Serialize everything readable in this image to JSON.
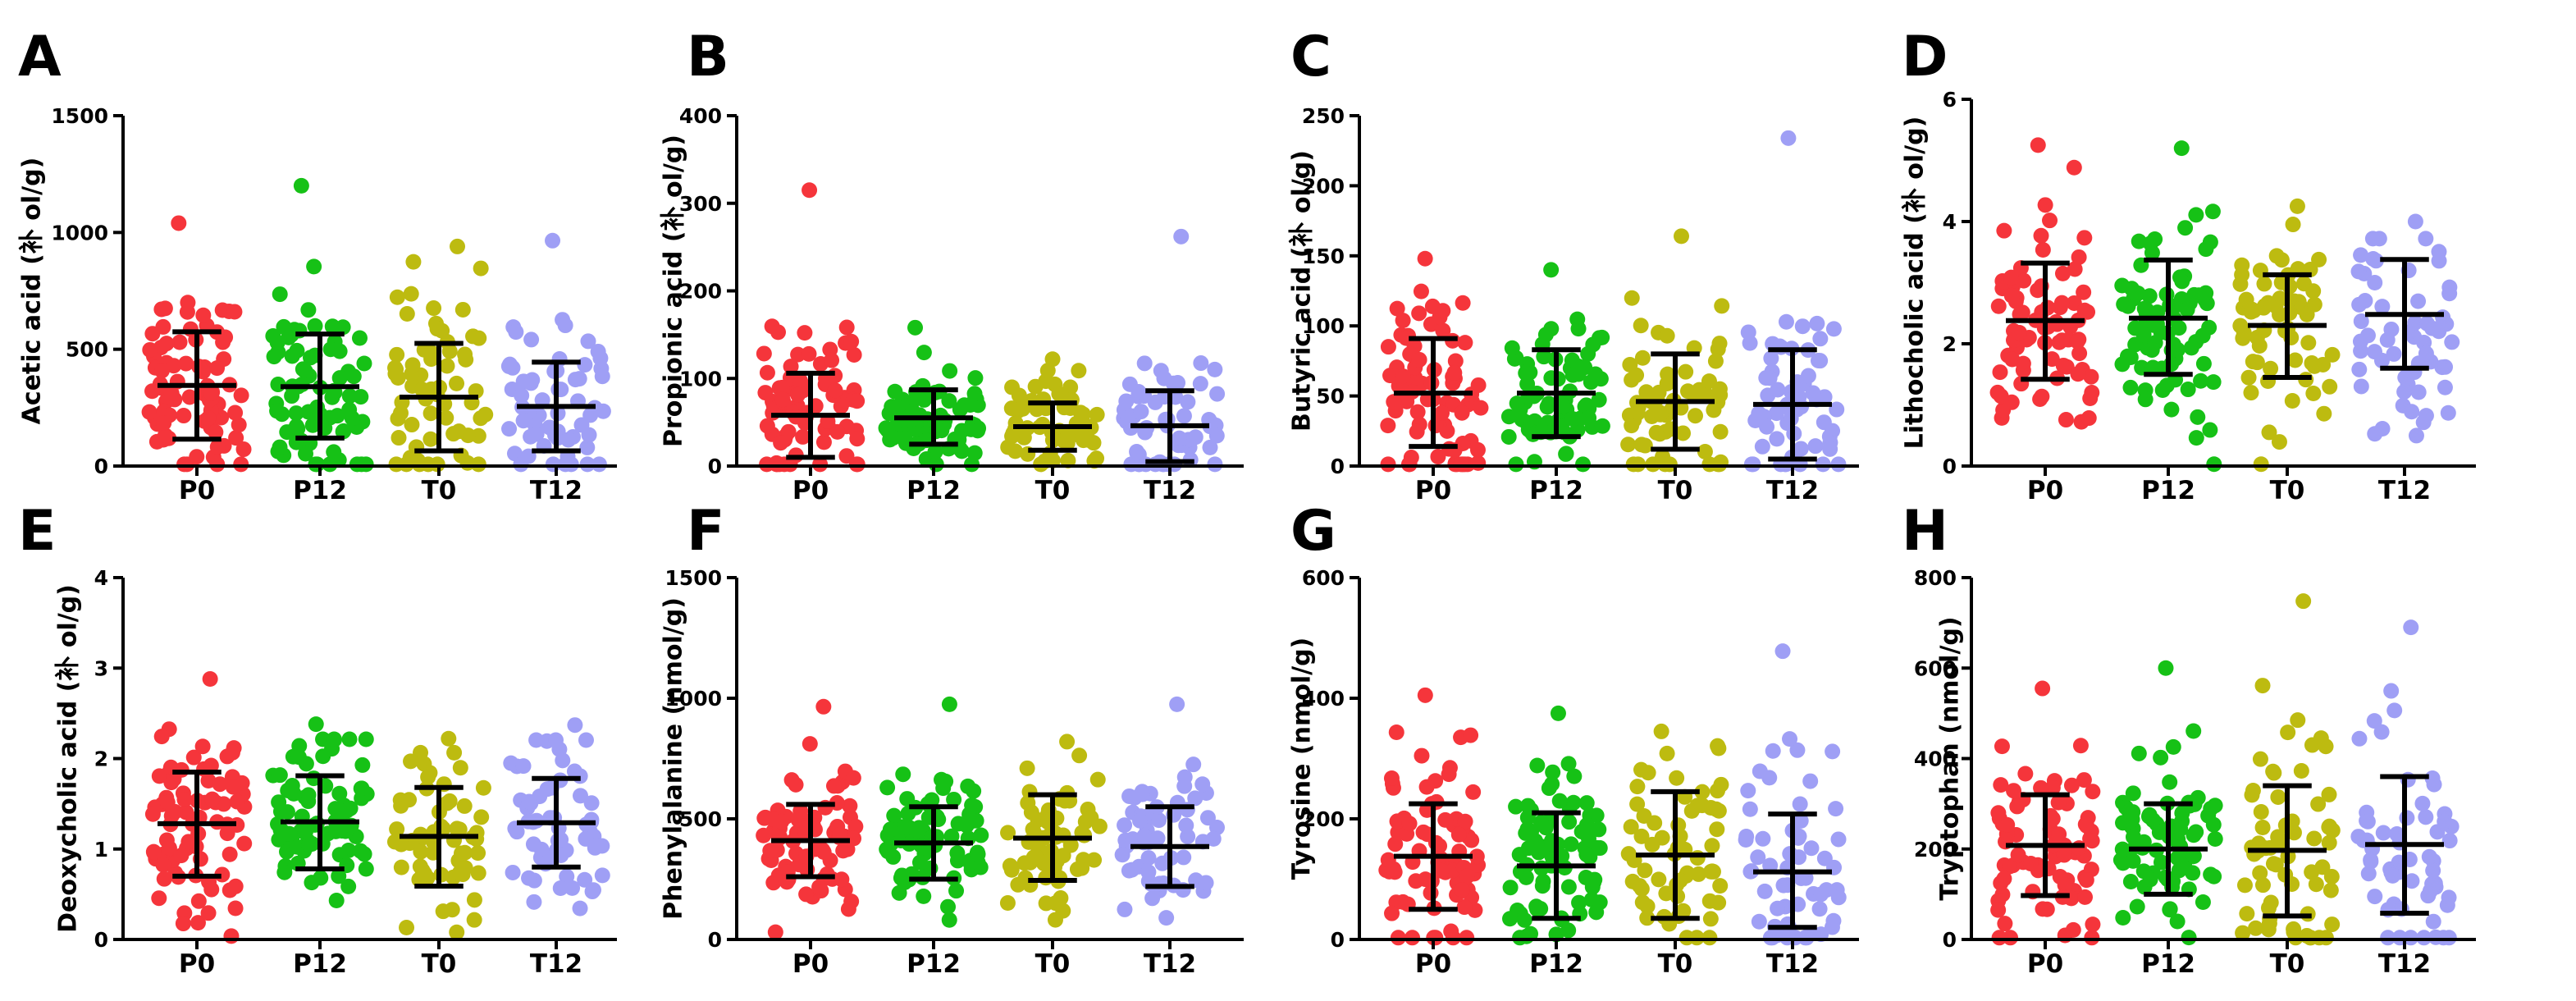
{
  "colors": {
    "P0": "#f5353b",
    "P12": "#16c116",
    "T0": "#bdbb10",
    "T12": "#9f9ff5"
  },
  "chart_data": [
    {
      "panel": "A",
      "type": "scatter",
      "ylabel": "Acetic acid (补 ol/g)",
      "ylim": [
        0,
        1500
      ],
      "yticks": [
        "0",
        "500",
        "1000",
        "1500"
      ],
      "categories": [
        "P0",
        "P12",
        "T0",
        "T12"
      ],
      "series": [
        {
          "name": "P0",
          "mean": 345,
          "lower": 115,
          "upper": 575,
          "n": 80,
          "max": 1040
        },
        {
          "name": "P12",
          "mean": 340,
          "lower": 120,
          "upper": 565,
          "n": 80,
          "max": 1200
        },
        {
          "name": "T0",
          "mean": 295,
          "lower": 65,
          "upper": 525,
          "n": 65,
          "max": 940
        },
        {
          "name": "T12",
          "mean": 255,
          "lower": 65,
          "upper": 445,
          "n": 60,
          "max": 965
        }
      ]
    },
    {
      "panel": "B",
      "type": "scatter",
      "ylabel": "Propionic acid (补 ol/g)",
      "ylim": [
        0,
        400
      ],
      "yticks": [
        "0",
        "100",
        "200",
        "300",
        "400"
      ],
      "categories": [
        "P0",
        "P12",
        "T0",
        "T12"
      ],
      "series": [
        {
          "name": "P0",
          "mean": 58,
          "lower": 10,
          "upper": 106,
          "n": 80,
          "max": 315
        },
        {
          "name": "P12",
          "mean": 55,
          "lower": 25,
          "upper": 87,
          "n": 80,
          "max": 158
        },
        {
          "name": "T0",
          "mean": 45,
          "lower": 18,
          "upper": 72,
          "n": 65,
          "max": 122
        },
        {
          "name": "T12",
          "mean": 46,
          "lower": 5,
          "upper": 86,
          "n": 60,
          "max": 262
        }
      ]
    },
    {
      "panel": "C",
      "type": "scatter",
      "ylabel": "Butyric acid (补 ol/g)",
      "ylim": [
        0,
        250
      ],
      "yticks": [
        "0",
        "50",
        "100",
        "150",
        "200",
        "250"
      ],
      "categories": [
        "P0",
        "P12",
        "T0",
        "T12"
      ],
      "series": [
        {
          "name": "P0",
          "mean": 52,
          "lower": 14,
          "upper": 91,
          "n": 80,
          "max": 148
        },
        {
          "name": "P12",
          "mean": 52,
          "lower": 21,
          "upper": 83,
          "n": 80,
          "max": 140
        },
        {
          "name": "T0",
          "mean": 46,
          "lower": 12,
          "upper": 80,
          "n": 65,
          "max": 164
        },
        {
          "name": "T12",
          "mean": 44,
          "lower": 5,
          "upper": 83,
          "n": 60,
          "max": 234
        }
      ]
    },
    {
      "panel": "D",
      "type": "scatter",
      "ylabel": "Lithocholic acid (补 ol/g)",
      "ylim": [
        0,
        6
      ],
      "yticks": [
        "0",
        "2",
        "4",
        "6"
      ],
      "categories": [
        "P0",
        "P12",
        "T0",
        "T12"
      ],
      "series": [
        {
          "name": "P0",
          "mean": 2.38,
          "lower": 1.42,
          "upper": 3.32,
          "n": 80,
          "max": 5.25
        },
        {
          "name": "P12",
          "mean": 2.42,
          "lower": 1.5,
          "upper": 3.37,
          "n": 80,
          "max": 5.2
        },
        {
          "name": "T0",
          "mean": 2.3,
          "lower": 1.45,
          "upper": 3.13,
          "n": 65,
          "max": 4.25
        },
        {
          "name": "T12",
          "mean": 2.48,
          "lower": 1.6,
          "upper": 3.38,
          "n": 60,
          "max": 4.0
        }
      ]
    },
    {
      "panel": "E",
      "type": "scatter",
      "ylabel": "Deoxycholic acid (补 ol/g)",
      "ylim": [
        0,
        4
      ],
      "yticks": [
        "0",
        "1",
        "2",
        "3",
        "4"
      ],
      "categories": [
        "P0",
        "P12",
        "T0",
        "T12"
      ],
      "series": [
        {
          "name": "P0",
          "mean": 1.28,
          "lower": 0.7,
          "upper": 1.85,
          "n": 80,
          "max": 2.88
        },
        {
          "name": "P12",
          "mean": 1.3,
          "lower": 0.78,
          "upper": 1.81,
          "n": 80,
          "max": 2.38
        },
        {
          "name": "T0",
          "mean": 1.14,
          "lower": 0.59,
          "upper": 1.68,
          "n": 65,
          "max": 2.22
        },
        {
          "name": "T12",
          "mean": 1.29,
          "lower": 0.8,
          "upper": 1.78,
          "n": 60,
          "max": 2.37
        }
      ]
    },
    {
      "panel": "F",
      "type": "scatter",
      "ylabel": "Phenylalanine (nmol/g)",
      "ylim": [
        0,
        1500
      ],
      "yticks": [
        "0",
        "500",
        "1000",
        "1500"
      ],
      "categories": [
        "P0",
        "P12",
        "T0",
        "T12"
      ],
      "series": [
        {
          "name": "P0",
          "mean": 410,
          "lower": 260,
          "upper": 560,
          "n": 80,
          "max": 965
        },
        {
          "name": "P12",
          "mean": 400,
          "lower": 250,
          "upper": 550,
          "n": 80,
          "max": 975
        },
        {
          "name": "T0",
          "mean": 420,
          "lower": 245,
          "upper": 600,
          "n": 65,
          "max": 820
        },
        {
          "name": "T12",
          "mean": 385,
          "lower": 220,
          "upper": 550,
          "n": 60,
          "max": 975
        }
      ]
    },
    {
      "panel": "G",
      "type": "scatter",
      "ylabel": "Tyrosine (nmol/g)",
      "ylim": [
        0,
        600
      ],
      "yticks": [
        "0",
        "200",
        "400",
        "600"
      ],
      "categories": [
        "P0",
        "P12",
        "T0",
        "T12"
      ],
      "series": [
        {
          "name": "P0",
          "mean": 138,
          "lower": 50,
          "upper": 225,
          "n": 80,
          "max": 405
        },
        {
          "name": "P12",
          "mean": 122,
          "lower": 35,
          "upper": 210,
          "n": 80,
          "max": 375
        },
        {
          "name": "T0",
          "mean": 140,
          "lower": 35,
          "upper": 245,
          "n": 65,
          "max": 345
        },
        {
          "name": "T12",
          "mean": 112,
          "lower": 20,
          "upper": 208,
          "n": 60,
          "max": 478
        }
      ]
    },
    {
      "panel": "H",
      "type": "scatter",
      "ylabel": "Tryptophan (nmol/g)",
      "ylim": [
        0,
        800
      ],
      "yticks": [
        "0",
        "200",
        "400",
        "600",
        "800"
      ],
      "categories": [
        "P0",
        "P12",
        "T0",
        "T12"
      ],
      "series": [
        {
          "name": "P0",
          "mean": 208,
          "lower": 97,
          "upper": 320,
          "n": 80,
          "max": 555
        },
        {
          "name": "P12",
          "mean": 200,
          "lower": 100,
          "upper": 300,
          "n": 80,
          "max": 600
        },
        {
          "name": "T0",
          "mean": 197,
          "lower": 52,
          "upper": 340,
          "n": 65,
          "max": 748
        },
        {
          "name": "T12",
          "mean": 210,
          "lower": 58,
          "upper": 360,
          "n": 60,
          "max": 690
        }
      ]
    }
  ]
}
